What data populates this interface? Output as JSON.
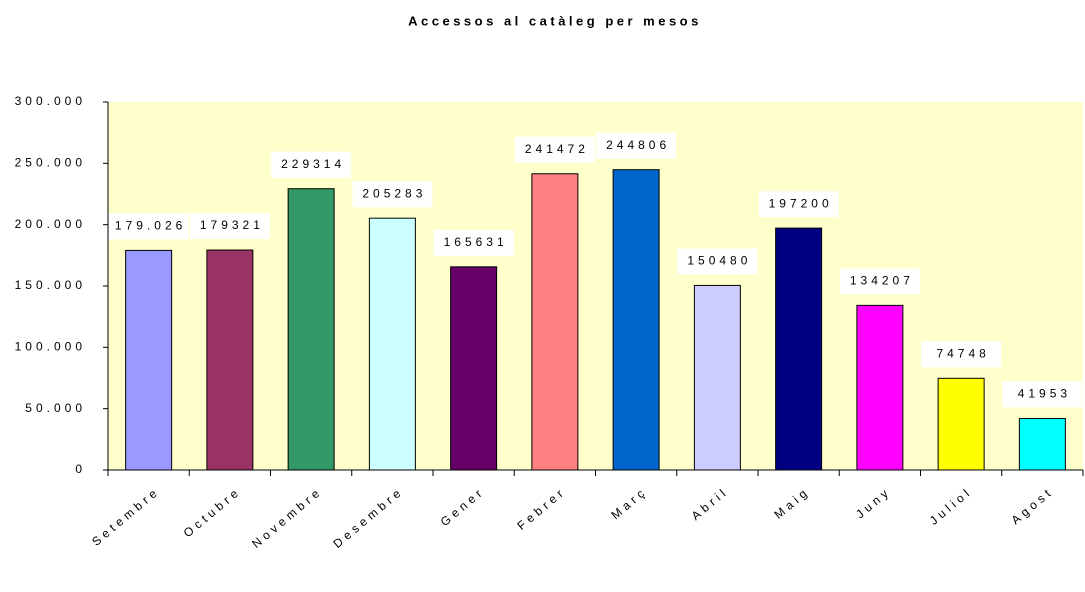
{
  "chart_data": {
    "type": "bar",
    "title": "Accessos al catàleg per mesos",
    "categories": [
      "Setembre",
      "Octubre",
      "Novembre",
      "Desembre",
      "Gener",
      "Febrer",
      "Març",
      "Abril",
      "Maig",
      "Juny",
      "Juliol",
      "Agost"
    ],
    "values": [
      179026,
      179321,
      229314,
      205283,
      165631,
      241472,
      244806,
      150480,
      197200,
      134207,
      74748,
      41953
    ],
    "value_labels": [
      "179.026",
      "179321",
      "229314",
      "205283",
      "165631",
      "241472",
      "244806",
      "150480",
      "197200",
      "134207",
      "74748",
      "41953"
    ],
    "colors": [
      "#9999ff",
      "#993366",
      "#339966",
      "#ccffff",
      "#660066",
      "#ff8080",
      "#0066cc",
      "#ccccff",
      "#000080",
      "#ff00ff",
      "#ffff00",
      "#00ffff"
    ],
    "ylim": [
      0,
      300000
    ],
    "yticks": [
      0,
      {
        "value": 50000,
        "label": "50.000"
      },
      {
        "value": 100000,
        "label": "100.000"
      },
      {
        "value": 150000,
        "label": "150.000"
      },
      {
        "value": 200000,
        "label": "200.000"
      },
      {
        "value": 250000,
        "label": "250.000"
      },
      {
        "value": 300000,
        "label": "300.000"
      }
    ],
    "plot_background": "#ffffcc"
  }
}
